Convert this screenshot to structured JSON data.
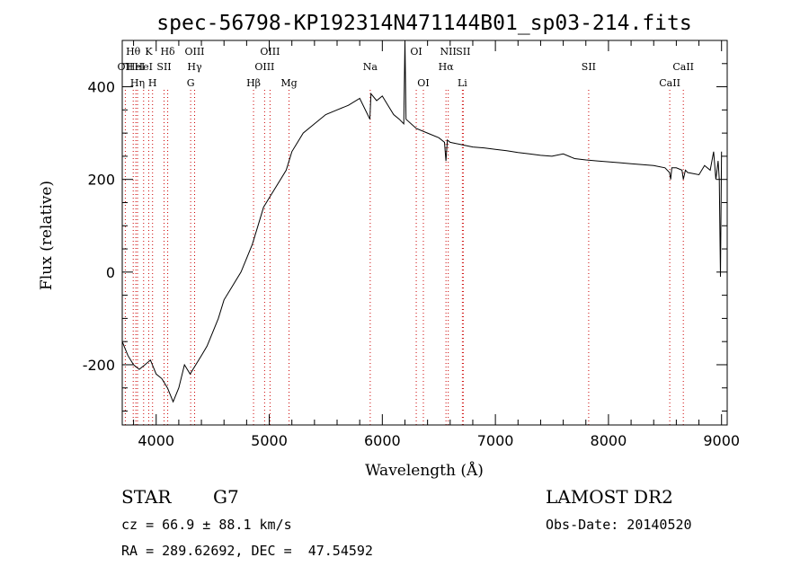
{
  "chart_data": {
    "type": "line",
    "title": "spec-56798-KP192314N471144B01_sp03-214.fits",
    "xlabel": "Wavelength (Å)",
    "ylabel": "Flux (relative)",
    "xlim": [
      3700,
      9050
    ],
    "ylim": [
      -330,
      500
    ],
    "x_ticks": [
      4000,
      5000,
      6000,
      7000,
      8000,
      9000
    ],
    "y_ticks": [
      -200,
      0,
      200,
      400
    ],
    "grid": false,
    "series": [
      {
        "x": [
          3700,
          3750,
          3800,
          3850,
          3900,
          3950,
          4000,
          4050,
          4100,
          4150,
          4200,
          4250,
          4300,
          4350,
          4400,
          4450,
          4500,
          4550,
          4600,
          4650,
          4700,
          4750,
          4800,
          4850,
          4900,
          4950,
          5000,
          5050,
          5100,
          5150,
          5200,
          5300,
          5400,
          5500,
          5600,
          5700,
          5800,
          5890,
          5900,
          5950,
          6000,
          6050,
          6100,
          6150,
          6190,
          6200,
          6210,
          6300,
          6400,
          6500,
          6550,
          6563,
          6575,
          6600,
          6700,
          6800,
          6900,
          7000,
          7100,
          7200,
          7300,
          7400,
          7500,
          7600,
          7700,
          7800,
          7900,
          8000,
          8100,
          8200,
          8300,
          8400,
          8500,
          8540,
          8550,
          8560,
          8600,
          8650,
          8662,
          8680,
          8700,
          8800,
          8850,
          8900,
          8930,
          8950,
          8970,
          8980,
          8990,
          9000
        ],
        "y": [
          -150,
          -180,
          -200,
          -210,
          -200,
          -190,
          -220,
          -230,
          -250,
          -280,
          -250,
          -200,
          -220,
          -200,
          -180,
          -160,
          -130,
          -100,
          -60,
          -40,
          -20,
          0,
          30,
          60,
          100,
          140,
          160,
          180,
          200,
          220,
          260,
          300,
          320,
          340,
          350,
          360,
          375,
          330,
          385,
          370,
          380,
          360,
          340,
          330,
          320,
          500,
          330,
          310,
          300,
          290,
          280,
          240,
          285,
          280,
          275,
          270,
          268,
          265,
          262,
          258,
          255,
          252,
          250,
          255,
          245,
          242,
          240,
          238,
          236,
          234,
          232,
          230,
          225,
          215,
          200,
          225,
          225,
          220,
          200,
          220,
          215,
          210,
          230,
          220,
          260,
          200,
          240,
          200,
          -10,
          260
        ]
      }
    ],
    "line_markers": [
      {
        "label": "OII",
        "wl": 3727,
        "row": 2
      },
      {
        "label": "Hθ",
        "wl": 3797,
        "row": 1
      },
      {
        "label": "HeI",
        "wl": 3820,
        "row": 2
      },
      {
        "label": "Hη",
        "wl": 3835,
        "row": 3
      },
      {
        "label": "K",
        "wl": 3934,
        "row": 1
      },
      {
        "label": "H",
        "wl": 3968,
        "row": 3
      },
      {
        "label": "HeI",
        "wl": 3889,
        "row": 2
      },
      {
        "label": "SII",
        "wl": 4070,
        "row": 2
      },
      {
        "label": "Hδ",
        "wl": 4102,
        "row": 1
      },
      {
        "label": "OIII",
        "wl": 4340,
        "row": 1
      },
      {
        "label": "Hγ",
        "wl": 4340,
        "row": 2
      },
      {
        "label": "G",
        "wl": 4305,
        "row": 3
      },
      {
        "label": "Hβ",
        "wl": 4861,
        "row": 3
      },
      {
        "label": "OIII",
        "wl": 4959,
        "row": 2
      },
      {
        "label": "OIII",
        "wl": 5007,
        "row": 1
      },
      {
        "label": "Mg",
        "wl": 5175,
        "row": 3
      },
      {
        "label": "Na",
        "wl": 5893,
        "row": 2
      },
      {
        "label": "OI",
        "wl": 6300,
        "row": 1
      },
      {
        "label": "OI",
        "wl": 6363,
        "row": 3
      },
      {
        "label": "NII",
        "wl": 6583,
        "row": 1
      },
      {
        "label": "Hα",
        "wl": 6563,
        "row": 2
      },
      {
        "label": "SII",
        "wl": 6716,
        "row": 1
      },
      {
        "label": "Li",
        "wl": 6708,
        "row": 3
      },
      {
        "label": "SII",
        "wl": 7825,
        "row": 2
      },
      {
        "label": "CaII",
        "wl": 8542,
        "row": 3
      },
      {
        "label": "CaII",
        "wl": 8662,
        "row": 2
      }
    ]
  },
  "info": {
    "object_class": "STAR",
    "subclass": "G7",
    "survey": "LAMOST DR2",
    "velocity": "cz = 66.9 ± 88.1 km/s",
    "obs_date": "Obs-Date: 20140520",
    "coords": "RA = 289.62692, DEC =  47.54592"
  }
}
